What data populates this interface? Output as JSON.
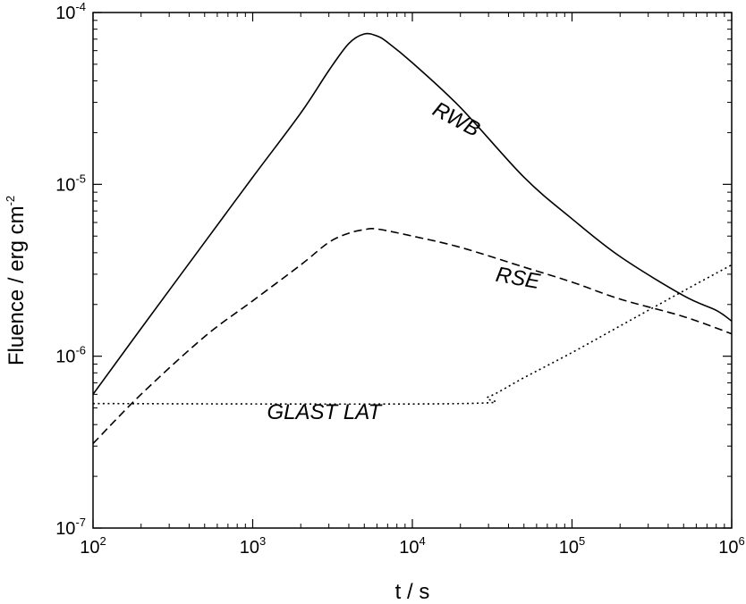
{
  "chart_data": {
    "type": "line",
    "xlabel": "t / s",
    "ylabel_main": "Fluence / erg cm",
    "ylabel_exp": "-2",
    "x_scale": "log",
    "y_scale": "log",
    "xlim": [
      100,
      1000000
    ],
    "ylim": [
      1e-07,
      0.0001
    ],
    "grid": false,
    "x_ticks": [
      {
        "value": 100,
        "base": "10",
        "exp": "2"
      },
      {
        "value": 1000,
        "base": "10",
        "exp": "3"
      },
      {
        "value": 10000,
        "base": "10",
        "exp": "4"
      },
      {
        "value": 100000,
        "base": "10",
        "exp": "5"
      },
      {
        "value": 1000000,
        "base": "10",
        "exp": "6"
      }
    ],
    "y_ticks": [
      {
        "value": 1e-07,
        "base": "10",
        "exp": "-7"
      },
      {
        "value": 1e-06,
        "base": "10",
        "exp": "-6"
      },
      {
        "value": 1e-05,
        "base": "10",
        "exp": "-5"
      },
      {
        "value": 0.0001,
        "base": "10",
        "exp": "-4"
      }
    ],
    "series": [
      {
        "name": "RWB",
        "style": "solid",
        "label_pos": [
          18000,
          2.2e-05
        ],
        "label_rotate": 28,
        "points": [
          [
            100,
            6e-07
          ],
          [
            200,
            1.45e-06
          ],
          [
            500,
            4.6e-06
          ],
          [
            1000,
            1.1e-05
          ],
          [
            2000,
            2.6e-05
          ],
          [
            3000,
            4.6e-05
          ],
          [
            4000,
            6.6e-05
          ],
          [
            5000,
            7.5e-05
          ],
          [
            6000,
            7.3e-05
          ],
          [
            7000,
            6.7e-05
          ],
          [
            10000,
            5.1e-05
          ],
          [
            20000,
            2.8e-05
          ],
          [
            50000,
            1.1e-05
          ],
          [
            100000,
            6.3e-06
          ],
          [
            200000,
            3.8e-06
          ],
          [
            500000,
            2.25e-06
          ],
          [
            800000,
            1.85e-06
          ],
          [
            1000000,
            1.6e-06
          ]
        ]
      },
      {
        "name": "RSE",
        "style": "dashed",
        "label_pos": [
          45000,
          2.6e-06
        ],
        "label_rotate": 10,
        "points": [
          [
            100,
            3.1e-07
          ],
          [
            200,
            6e-07
          ],
          [
            500,
            1.3e-06
          ],
          [
            1000,
            2.1e-06
          ],
          [
            2000,
            3.4e-06
          ],
          [
            3000,
            4.6e-06
          ],
          [
            4000,
            5.2e-06
          ],
          [
            5000,
            5.45e-06
          ],
          [
            6000,
            5.5e-06
          ],
          [
            10000,
            5e-06
          ],
          [
            20000,
            4.3e-06
          ],
          [
            50000,
            3.3e-06
          ],
          [
            100000,
            2.7e-06
          ],
          [
            200000,
            2.15e-06
          ],
          [
            500000,
            1.7e-06
          ],
          [
            1000000,
            1.35e-06
          ]
        ]
      },
      {
        "name": "GLAST LAT",
        "style": "dotted",
        "label_pos": [
          2800,
          4.3e-07
        ],
        "label_rotate": 0,
        "label_italic": true,
        "points": [
          [
            100,
            5.3e-07
          ],
          [
            20000,
            5.3e-07
          ],
          [
            30000,
            5.8e-07
          ],
          [
            50000,
            7.5e-07
          ],
          [
            100000,
            1.05e-06
          ],
          [
            200000,
            1.5e-06
          ],
          [
            500000,
            2.4e-06
          ],
          [
            1000000,
            3.4e-06
          ]
        ]
      }
    ]
  }
}
